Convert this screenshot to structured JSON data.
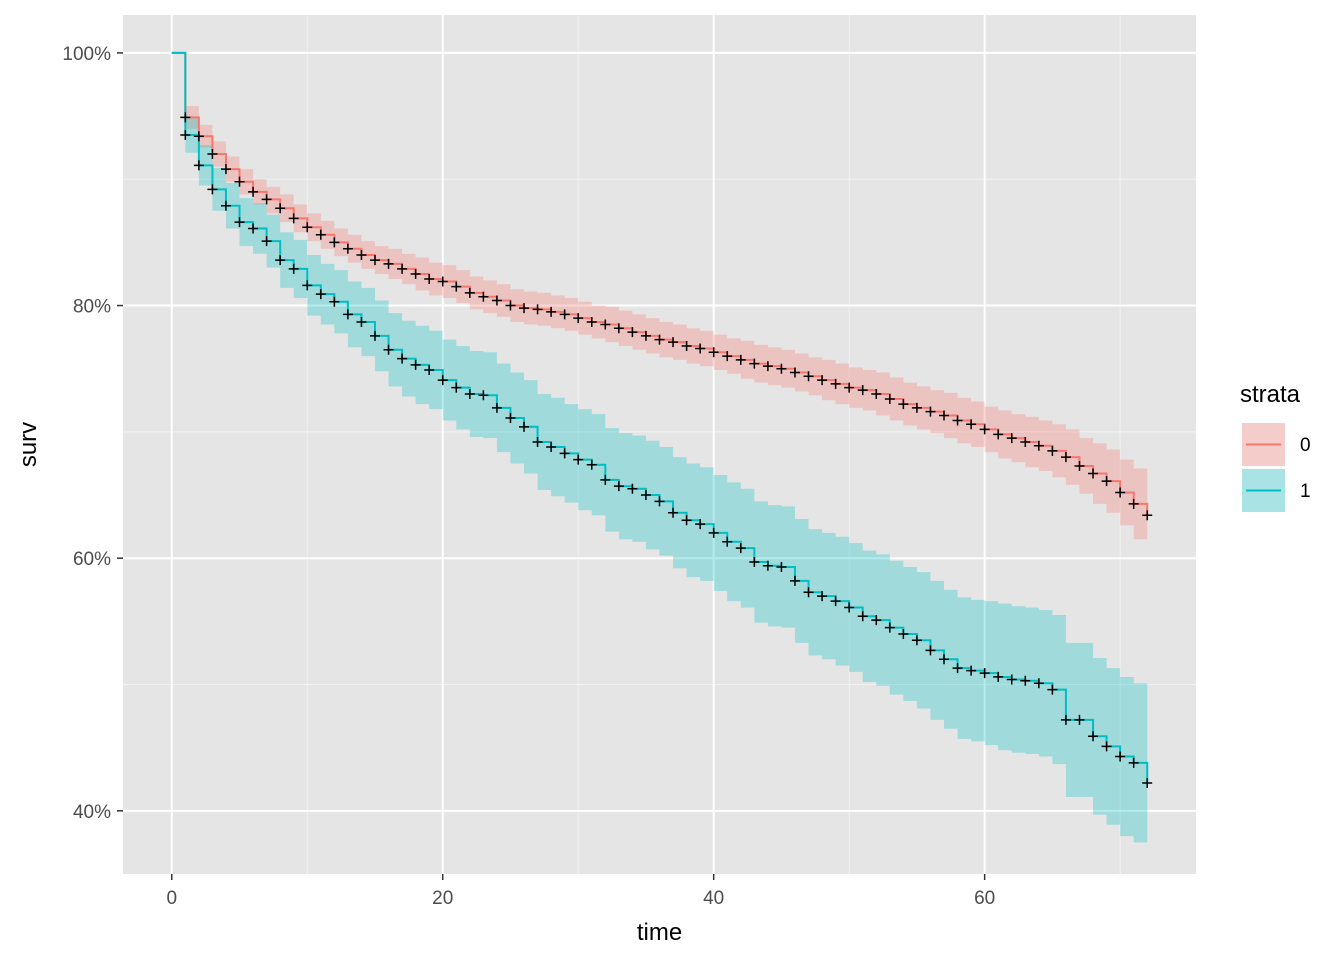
{
  "chart_data": {
    "type": "line",
    "subtype": "kaplan-meier step curves with confidence bands and censor marks",
    "title": "",
    "xlabel": "time",
    "ylabel": "surv",
    "xlim": [
      -3.6,
      75.6
    ],
    "ylim": [
      0.35,
      1.03
    ],
    "x_ticks": [
      0,
      20,
      40,
      60
    ],
    "x_tick_labels": [
      "0",
      "20",
      "40",
      "60"
    ],
    "y_ticks": [
      0.4,
      0.6,
      0.8,
      1.0
    ],
    "y_tick_labels": [
      "40%",
      "60%",
      "80%",
      "100%"
    ],
    "grid": true,
    "background": "#e5e5e5",
    "legend": {
      "title": "strata",
      "position": "right"
    },
    "series": [
      {
        "name": "0",
        "color": "#f8766d",
        "x": [
          0,
          1,
          2,
          3,
          4,
          5,
          6,
          7,
          8,
          9,
          10,
          11,
          12,
          13,
          14,
          15,
          16,
          17,
          18,
          19,
          20,
          21,
          22,
          23,
          24,
          25,
          26,
          27,
          28,
          29,
          30,
          31,
          32,
          33,
          34,
          35,
          36,
          37,
          38,
          39,
          40,
          41,
          42,
          43,
          44,
          45,
          46,
          47,
          48,
          49,
          50,
          51,
          52,
          53,
          54,
          55,
          56,
          57,
          58,
          59,
          60,
          61,
          62,
          63,
          64,
          65,
          66,
          67,
          68,
          69,
          70,
          71,
          72
        ],
        "y": [
          1.0,
          0.949,
          0.934,
          0.92,
          0.908,
          0.898,
          0.89,
          0.884,
          0.877,
          0.869,
          0.862,
          0.856,
          0.85,
          0.845,
          0.84,
          0.836,
          0.833,
          0.829,
          0.825,
          0.821,
          0.819,
          0.815,
          0.81,
          0.807,
          0.804,
          0.8,
          0.798,
          0.797,
          0.795,
          0.793,
          0.79,
          0.787,
          0.785,
          0.782,
          0.779,
          0.776,
          0.773,
          0.771,
          0.768,
          0.766,
          0.763,
          0.76,
          0.757,
          0.754,
          0.752,
          0.75,
          0.747,
          0.744,
          0.741,
          0.738,
          0.735,
          0.733,
          0.73,
          0.726,
          0.722,
          0.719,
          0.716,
          0.713,
          0.709,
          0.706,
          0.702,
          0.698,
          0.695,
          0.692,
          0.689,
          0.685,
          0.68,
          0.673,
          0.667,
          0.661,
          0.652,
          0.643,
          0.634
        ],
        "lower": [
          1.0,
          0.94,
          0.925,
          0.91,
          0.898,
          0.888,
          0.88,
          0.873,
          0.866,
          0.858,
          0.851,
          0.845,
          0.839,
          0.834,
          0.829,
          0.825,
          0.821,
          0.817,
          0.812,
          0.808,
          0.806,
          0.802,
          0.797,
          0.794,
          0.791,
          0.787,
          0.785,
          0.784,
          0.782,
          0.78,
          0.777,
          0.774,
          0.771,
          0.768,
          0.765,
          0.762,
          0.759,
          0.757,
          0.754,
          0.752,
          0.749,
          0.746,
          0.742,
          0.739,
          0.737,
          0.735,
          0.732,
          0.729,
          0.725,
          0.722,
          0.719,
          0.717,
          0.713,
          0.709,
          0.705,
          0.702,
          0.699,
          0.695,
          0.691,
          0.688,
          0.684,
          0.679,
          0.676,
          0.672,
          0.669,
          0.664,
          0.658,
          0.651,
          0.643,
          0.636,
          0.626,
          0.615,
          0.624
        ],
        "upper": [
          1.0,
          0.958,
          0.943,
          0.93,
          0.918,
          0.908,
          0.9,
          0.894,
          0.888,
          0.88,
          0.873,
          0.867,
          0.861,
          0.856,
          0.851,
          0.847,
          0.845,
          0.841,
          0.838,
          0.834,
          0.832,
          0.828,
          0.823,
          0.82,
          0.817,
          0.813,
          0.811,
          0.81,
          0.808,
          0.806,
          0.803,
          0.8,
          0.799,
          0.796,
          0.793,
          0.79,
          0.787,
          0.785,
          0.782,
          0.78,
          0.777,
          0.774,
          0.772,
          0.769,
          0.767,
          0.765,
          0.762,
          0.759,
          0.757,
          0.754,
          0.751,
          0.749,
          0.747,
          0.743,
          0.739,
          0.736,
          0.733,
          0.731,
          0.727,
          0.724,
          0.72,
          0.717,
          0.714,
          0.712,
          0.709,
          0.706,
          0.702,
          0.695,
          0.691,
          0.686,
          0.678,
          0.671,
          0.644
        ],
        "censor_x": [
          1,
          2,
          3,
          4,
          5,
          6,
          7,
          8,
          9,
          10,
          11,
          12,
          13,
          14,
          15,
          16,
          17,
          18,
          19,
          20,
          21,
          22,
          23,
          24,
          25,
          26,
          27,
          28,
          29,
          30,
          31,
          32,
          33,
          34,
          35,
          36,
          37,
          38,
          39,
          40,
          41,
          42,
          43,
          44,
          45,
          46,
          47,
          48,
          49,
          50,
          51,
          52,
          53,
          54,
          55,
          56,
          57,
          58,
          59,
          60,
          61,
          62,
          63,
          64,
          65,
          66,
          67,
          68,
          69,
          70,
          71,
          72
        ],
        "censor_y": [
          0.949,
          0.934,
          0.92,
          0.908,
          0.898,
          0.89,
          0.884,
          0.877,
          0.869,
          0.862,
          0.856,
          0.85,
          0.845,
          0.84,
          0.836,
          0.833,
          0.829,
          0.825,
          0.821,
          0.819,
          0.815,
          0.81,
          0.807,
          0.804,
          0.8,
          0.798,
          0.797,
          0.795,
          0.793,
          0.79,
          0.787,
          0.785,
          0.782,
          0.779,
          0.776,
          0.773,
          0.771,
          0.768,
          0.766,
          0.763,
          0.76,
          0.757,
          0.754,
          0.752,
          0.75,
          0.747,
          0.744,
          0.741,
          0.738,
          0.735,
          0.733,
          0.73,
          0.726,
          0.722,
          0.719,
          0.716,
          0.713,
          0.709,
          0.706,
          0.702,
          0.698,
          0.695,
          0.692,
          0.689,
          0.685,
          0.68,
          0.673,
          0.667,
          0.661,
          0.652,
          0.643,
          0.634
        ]
      },
      {
        "name": "1",
        "color": "#00bfc4",
        "x": [
          0,
          1,
          2,
          3,
          4,
          5,
          6,
          7,
          8,
          9,
          10,
          11,
          12,
          13,
          14,
          15,
          16,
          17,
          18,
          19,
          20,
          21,
          22,
          23,
          24,
          25,
          26,
          27,
          28,
          29,
          30,
          31,
          32,
          33,
          34,
          35,
          36,
          37,
          38,
          39,
          40,
          41,
          42,
          43,
          44,
          45,
          46,
          47,
          48,
          49,
          50,
          51,
          52,
          53,
          54,
          55,
          56,
          57,
          58,
          59,
          60,
          61,
          62,
          63,
          64,
          65,
          66,
          67,
          68,
          69,
          70,
          71,
          72
        ],
        "y": [
          1.0,
          0.935,
          0.911,
          0.892,
          0.879,
          0.866,
          0.861,
          0.851,
          0.836,
          0.829,
          0.816,
          0.809,
          0.803,
          0.793,
          0.787,
          0.776,
          0.765,
          0.758,
          0.753,
          0.749,
          0.741,
          0.735,
          0.73,
          0.729,
          0.719,
          0.711,
          0.704,
          0.692,
          0.688,
          0.683,
          0.678,
          0.674,
          0.662,
          0.657,
          0.655,
          0.65,
          0.645,
          0.636,
          0.63,
          0.627,
          0.62,
          0.613,
          0.608,
          0.597,
          0.594,
          0.593,
          0.582,
          0.573,
          0.57,
          0.566,
          0.561,
          0.554,
          0.551,
          0.545,
          0.54,
          0.535,
          0.527,
          0.52,
          0.513,
          0.511,
          0.509,
          0.506,
          0.504,
          0.503,
          0.501,
          0.496,
          0.472,
          0.472,
          0.459,
          0.451,
          0.443,
          0.438,
          0.422
        ],
        "lower": [
          1.0,
          0.921,
          0.895,
          0.875,
          0.861,
          0.847,
          0.841,
          0.83,
          0.814,
          0.806,
          0.792,
          0.785,
          0.778,
          0.767,
          0.76,
          0.748,
          0.736,
          0.728,
          0.722,
          0.718,
          0.709,
          0.702,
          0.696,
          0.695,
          0.684,
          0.675,
          0.667,
          0.654,
          0.649,
          0.644,
          0.638,
          0.634,
          0.621,
          0.615,
          0.613,
          0.607,
          0.602,
          0.592,
          0.585,
          0.582,
          0.574,
          0.566,
          0.561,
          0.549,
          0.546,
          0.545,
          0.533,
          0.523,
          0.52,
          0.515,
          0.51,
          0.502,
          0.499,
          0.492,
          0.487,
          0.481,
          0.472,
          0.465,
          0.457,
          0.455,
          0.452,
          0.448,
          0.446,
          0.445,
          0.443,
          0.437,
          0.411,
          0.411,
          0.397,
          0.389,
          0.38,
          0.375,
          0.397
        ],
        "upper": [
          1.0,
          0.949,
          0.927,
          0.909,
          0.897,
          0.885,
          0.881,
          0.872,
          0.858,
          0.852,
          0.84,
          0.833,
          0.828,
          0.819,
          0.814,
          0.804,
          0.794,
          0.788,
          0.784,
          0.78,
          0.773,
          0.768,
          0.764,
          0.763,
          0.754,
          0.747,
          0.741,
          0.73,
          0.727,
          0.722,
          0.718,
          0.714,
          0.703,
          0.699,
          0.697,
          0.693,
          0.688,
          0.68,
          0.675,
          0.672,
          0.666,
          0.66,
          0.655,
          0.645,
          0.642,
          0.641,
          0.631,
          0.623,
          0.62,
          0.617,
          0.612,
          0.606,
          0.603,
          0.598,
          0.593,
          0.589,
          0.582,
          0.575,
          0.569,
          0.567,
          0.566,
          0.564,
          0.562,
          0.561,
          0.559,
          0.555,
          0.533,
          0.533,
          0.521,
          0.513,
          0.506,
          0.501,
          0.447
        ],
        "censor_x": [
          1,
          2,
          3,
          4,
          5,
          6,
          7,
          8,
          9,
          10,
          11,
          12,
          13,
          14,
          15,
          16,
          17,
          18,
          19,
          20,
          21,
          22,
          23,
          24,
          25,
          26,
          27,
          28,
          29,
          30,
          31,
          32,
          33,
          34,
          35,
          36,
          37,
          38,
          39,
          40,
          41,
          42,
          43,
          44,
          45,
          46,
          47,
          48,
          49,
          50,
          51,
          52,
          53,
          54,
          55,
          56,
          57,
          58,
          59,
          60,
          61,
          62,
          63,
          64,
          65,
          66,
          67,
          68,
          69,
          70,
          71,
          72
        ],
        "censor_y": [
          0.935,
          0.911,
          0.892,
          0.879,
          0.866,
          0.861,
          0.851,
          0.836,
          0.829,
          0.816,
          0.809,
          0.803,
          0.793,
          0.787,
          0.776,
          0.765,
          0.758,
          0.753,
          0.749,
          0.741,
          0.735,
          0.73,
          0.729,
          0.719,
          0.711,
          0.704,
          0.692,
          0.688,
          0.683,
          0.678,
          0.674,
          0.662,
          0.657,
          0.655,
          0.65,
          0.645,
          0.636,
          0.63,
          0.627,
          0.62,
          0.613,
          0.608,
          0.597,
          0.594,
          0.593,
          0.582,
          0.573,
          0.57,
          0.566,
          0.561,
          0.554,
          0.551,
          0.545,
          0.54,
          0.535,
          0.527,
          0.52,
          0.513,
          0.511,
          0.509,
          0.506,
          0.504,
          0.503,
          0.501,
          0.496,
          0.472,
          0.472,
          0.459,
          0.451,
          0.443,
          0.438,
          0.422
        ]
      }
    ]
  }
}
